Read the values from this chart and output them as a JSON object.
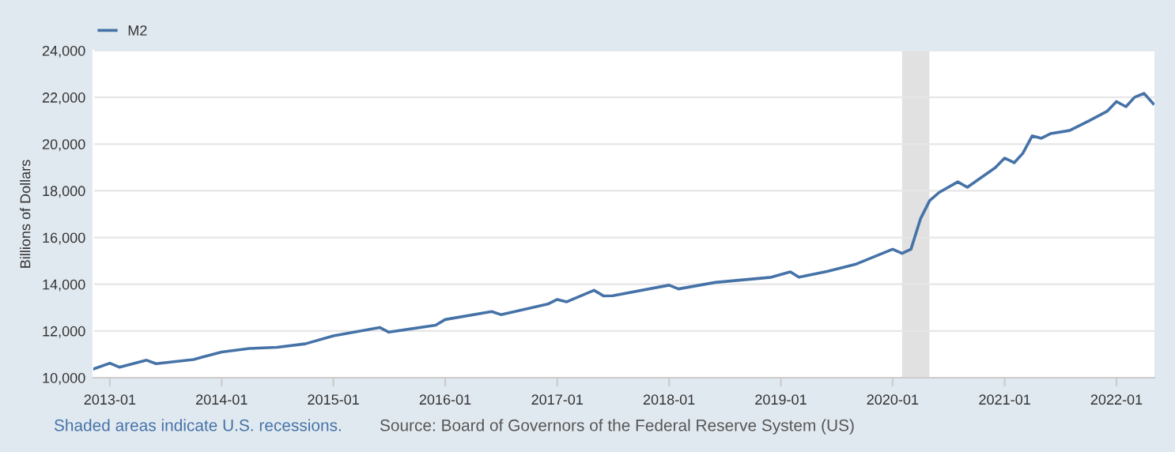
{
  "chart_data": {
    "type": "line",
    "ylabel": "Billions of Dollars",
    "x": [
      "2012-11-10",
      "2013-01",
      "2013-02",
      "2013-05",
      "2013-06",
      "2013-10",
      "2014-01",
      "2014-04",
      "2014-07",
      "2014-10",
      "2015-01",
      "2015-06",
      "2015-07",
      "2015-12",
      "2016-01",
      "2016-06",
      "2016-07",
      "2016-12",
      "2017-01",
      "2017-02",
      "2017-05",
      "2017-06",
      "2017-07",
      "2018-01",
      "2018-02",
      "2018-06",
      "2018-12",
      "2019-02",
      "2019-03",
      "2019-06",
      "2019-09",
      "2020-01",
      "2020-02",
      "2020-03",
      "2020-04",
      "2020-05",
      "2020-06",
      "2020-08",
      "2020-09",
      "2020-12",
      "2021-01",
      "2021-02",
      "2021-03",
      "2021-04",
      "2021-05",
      "2021-06",
      "2021-08",
      "2021-10",
      "2021-12",
      "2022-01",
      "2022-02",
      "2022-03",
      "2022-04",
      "2022-05"
    ],
    "series": [
      {
        "name": "M2",
        "color": "#4572a7",
        "values": [
          10380,
          10620,
          10450,
          10750,
          10600,
          10780,
          11100,
          11250,
          11300,
          11450,
          11790,
          12150,
          11950,
          12250,
          12490,
          12830,
          12700,
          13150,
          13350,
          13250,
          13740,
          13500,
          13510,
          13960,
          13800,
          14080,
          14300,
          14530,
          14300,
          14550,
          14850,
          15500,
          15320,
          15500,
          16800,
          17580,
          17930,
          18380,
          18150,
          18990,
          19400,
          19200,
          19600,
          20350,
          20250,
          20450,
          20580,
          20980,
          21400,
          21820,
          21600,
          22000,
          22170,
          21730
        ]
      }
    ],
    "xlim": [
      "2012-11-08",
      "2022-05-05"
    ],
    "xticks": [
      {
        "value": "2013-01-01",
        "label": "2013-01"
      },
      {
        "value": "2014-01-01",
        "label": "2014-01"
      },
      {
        "value": "2015-01-01",
        "label": "2015-01"
      },
      {
        "value": "2016-01-01",
        "label": "2016-01"
      },
      {
        "value": "2017-01-01",
        "label": "2017-01"
      },
      {
        "value": "2018-01-01",
        "label": "2018-01"
      },
      {
        "value": "2019-01-01",
        "label": "2019-01"
      },
      {
        "value": "2020-01-01",
        "label": "2020-01"
      },
      {
        "value": "2021-01-01",
        "label": "2021-01"
      },
      {
        "value": "2022-01-01",
        "label": "2022-01"
      }
    ],
    "ylim": [
      10000,
      24000
    ],
    "yticks": [
      {
        "value": 10000,
        "label": "10,000"
      },
      {
        "value": 12000,
        "label": "12,000"
      },
      {
        "value": 14000,
        "label": "14,000"
      },
      {
        "value": 16000,
        "label": "16,000"
      },
      {
        "value": 18000,
        "label": "18,000"
      },
      {
        "value": 20000,
        "label": "20,000"
      },
      {
        "value": 22000,
        "label": "22,000"
      },
      {
        "value": 24000,
        "label": "24,000"
      }
    ],
    "bands": [
      {
        "axis": "x",
        "from": "2020-02-01",
        "to": "2020-04-30",
        "color": "#e1e1e1"
      }
    ],
    "grid": "y",
    "legend": "top left",
    "marker": "none",
    "line_style": "solid",
    "annotations": [
      "Shaded areas indicate U.S. recessions.",
      "Source: Board of Governors of the Federal Reserve System (US)"
    ]
  }
}
